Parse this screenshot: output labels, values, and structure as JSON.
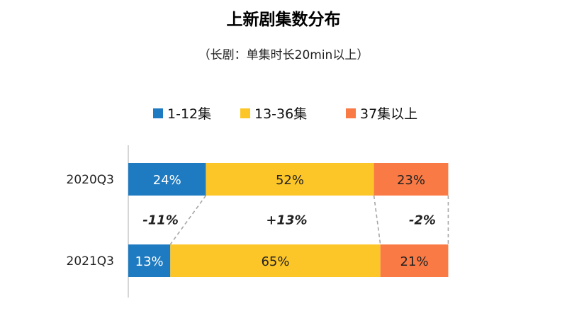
{
  "title": "上新剧集数分布",
  "subtitle": "（长剧：单集时长20min以上）",
  "chart_data": {
    "type": "bar",
    "orientation": "horizontal",
    "stacked": true,
    "percent_stacked": true,
    "title": "上新剧集数分布",
    "subtitle": "（长剧：单集时长20min以上）",
    "categories": [
      "2020Q3",
      "2021Q3"
    ],
    "series": [
      {
        "name": "1-12集",
        "color": "#1f7bc1",
        "values": [
          24,
          13
        ],
        "labels": [
          "24%",
          "13%"
        ]
      },
      {
        "name": "13-36集",
        "color": "#fdc628",
        "values": [
          52,
          65
        ],
        "labels": [
          "52%",
          "65%"
        ]
      },
      {
        "name": "37集以上",
        "color": "#f97a45",
        "values": [
          23,
          21
        ],
        "labels": [
          "23%",
          "21%"
        ]
      }
    ],
    "changes": [
      "-11%",
      "+13%",
      "-2%"
    ],
    "legend_position": "top",
    "grid": false,
    "xlim": [
      0,
      100
    ]
  }
}
